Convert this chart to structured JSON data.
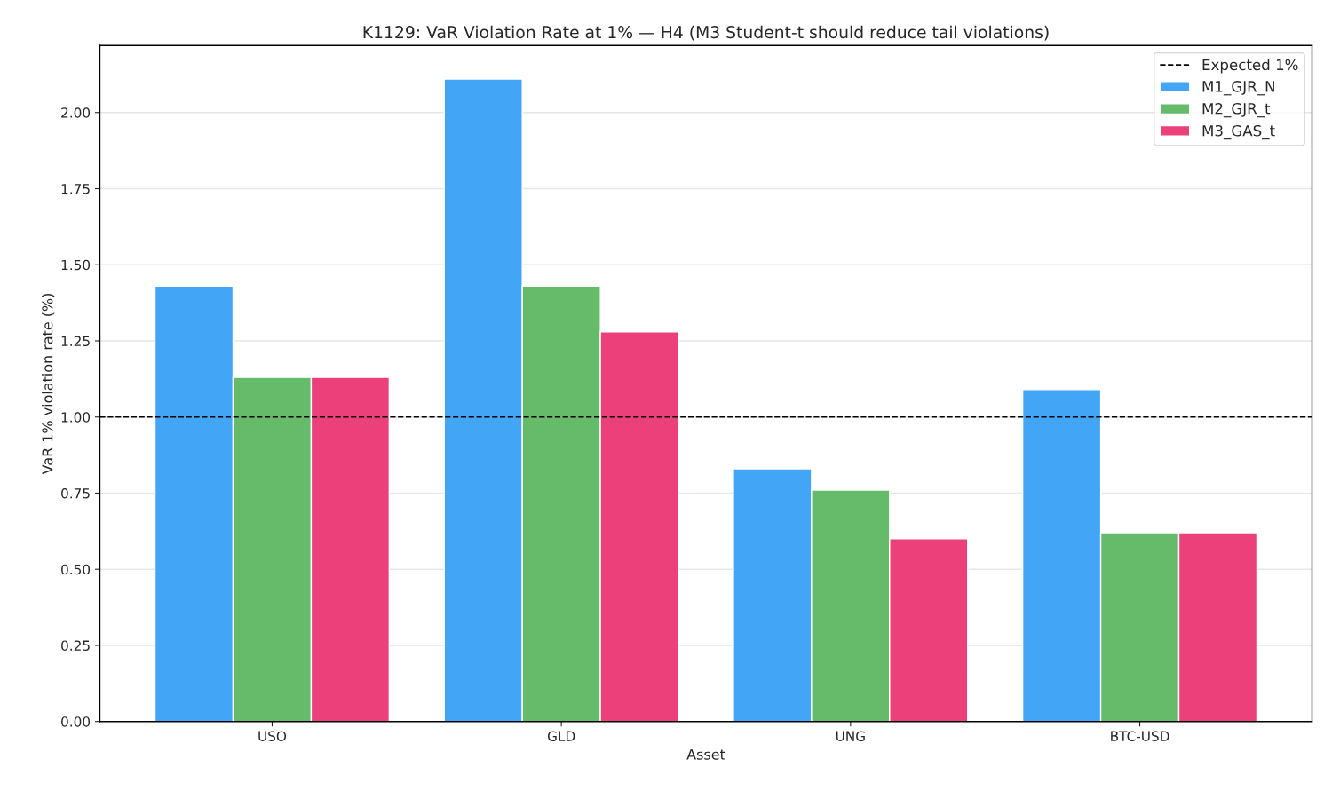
{
  "chart_data": {
    "type": "bar",
    "title": "K1129: VaR Violation Rate at 1% — H4 (M3 Student-t should reduce tail violations)",
    "xlabel": "Asset",
    "ylabel": "VaR 1% violation rate (%)",
    "categories": [
      "USO",
      "GLD",
      "UNG",
      "BTC-USD"
    ],
    "series": [
      {
        "name": "M1_GJR_N",
        "color": "#42a5f5",
        "values": [
          1.43,
          2.11,
          0.83,
          1.09
        ]
      },
      {
        "name": "M2_GJR_t",
        "color": "#66bb6a",
        "values": [
          1.13,
          1.43,
          0.76,
          0.62
        ]
      },
      {
        "name": "M3_GAS_t",
        "color": "#ec407a",
        "values": [
          1.13,
          1.28,
          0.6,
          0.62
        ]
      }
    ],
    "ylim": [
      0,
      2.22
    ],
    "yticks": [
      {
        "value": 0,
        "label": "0.00"
      },
      {
        "value": 0.25,
        "label": "0.25"
      },
      {
        "value": 0.5,
        "label": "0.50"
      },
      {
        "value": 0.75,
        "label": "0.75"
      },
      {
        "value": 1,
        "label": "1.00"
      },
      {
        "value": 1.25,
        "label": "1.25"
      },
      {
        "value": 1.5,
        "label": "1.50"
      },
      {
        "value": 1.75,
        "label": "1.75"
      },
      {
        "value": 2,
        "label": "2.00"
      }
    ],
    "ref_lines": [
      {
        "axis": "y",
        "value": 1,
        "label": "Expected 1%",
        "color": "#000000",
        "line_style": "dashed"
      }
    ],
    "grid": "y",
    "legend": "top right"
  }
}
